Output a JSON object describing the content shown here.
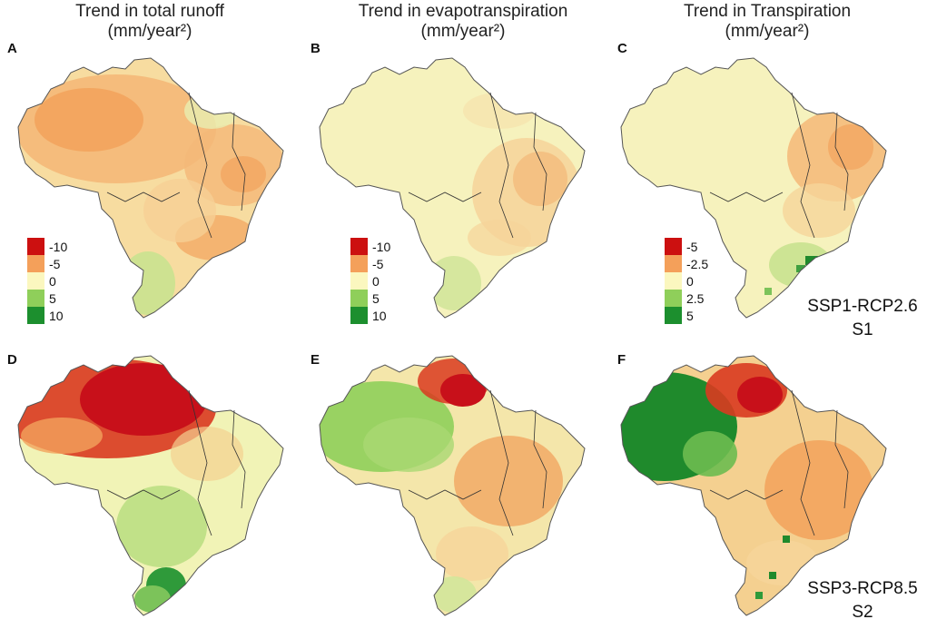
{
  "column_titles": [
    {
      "line1": "Trend in total runoff",
      "line2": "(mm/year²)"
    },
    {
      "line1": "Trend in evapotranspiration",
      "line2": "(mm/year²)"
    },
    {
      "line1": "Trend in Transpiration",
      "line2": "(mm/year²)"
    }
  ],
  "panels": {
    "A": "A",
    "B": "B",
    "C": "C",
    "D": "D",
    "E": "E",
    "F": "F"
  },
  "legends": {
    "runoff": {
      "entries": [
        {
          "label": "-10",
          "color": "#cc1010"
        },
        {
          "label": "-5",
          "color": "#f4a05a"
        },
        {
          "label": "0",
          "color": "#fbf7bf"
        },
        {
          "label": "5",
          "color": "#8fcf5a"
        },
        {
          "label": "10",
          "color": "#1c8f2e"
        }
      ]
    },
    "evapotranspiration": {
      "entries": [
        {
          "label": "-10",
          "color": "#cc1010"
        },
        {
          "label": "-5",
          "color": "#f4a05a"
        },
        {
          "label": "0",
          "color": "#fbf7bf"
        },
        {
          "label": "5",
          "color": "#8fcf5a"
        },
        {
          "label": "10",
          "color": "#1c8f2e"
        }
      ]
    },
    "transpiration": {
      "entries": [
        {
          "label": "-5",
          "color": "#cc1010"
        },
        {
          "label": "-2.5",
          "color": "#f4a05a"
        },
        {
          "label": "0",
          "color": "#fbf7bf"
        },
        {
          "label": "2.5",
          "color": "#8fcf5a"
        },
        {
          "label": "5",
          "color": "#1c8f2e"
        }
      ]
    }
  },
  "scenarios": [
    {
      "line1": "SSP1-RCP2.6",
      "line2": "S1"
    },
    {
      "line1": "SSP3-RCP8.5",
      "line2": "S2"
    }
  ],
  "colors": {
    "deep_red": "#c8101a",
    "red": "#d93a20",
    "orange": "#f2a25c",
    "light_orange": "#f6c98a",
    "cream": "#f8f3c2",
    "pale_yellow": "#f1f3b6",
    "light_green": "#b8dd80",
    "green": "#7cc35a",
    "dark_green": "#1f8a2c",
    "border": "#444444"
  }
}
